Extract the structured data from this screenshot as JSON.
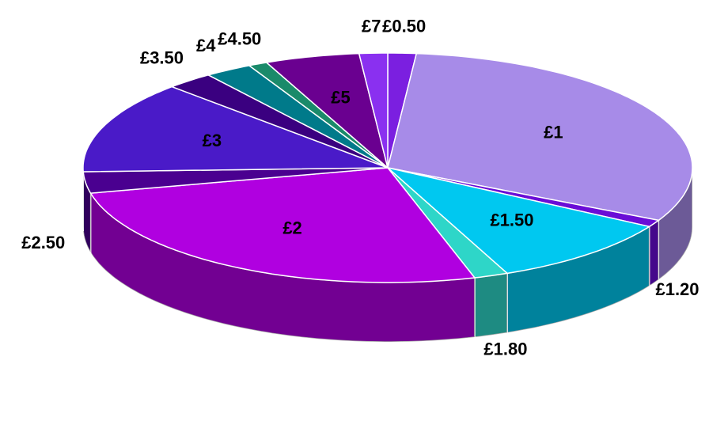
{
  "chart_data": {
    "type": "pie",
    "categories": [
      "£0.50",
      "£1",
      "£1.20",
      "£1.50",
      "£1.80",
      "£2",
      "£2.50",
      "£3",
      "£3.50",
      "£4",
      "£4.50",
      "£5",
      "£7"
    ],
    "values": [
      1.5,
      31,
      1,
      10,
      1.8,
      26,
      3,
      13,
      2.5,
      2.5,
      1,
      5,
      1.5
    ],
    "colors": [
      "#7b1fe0",
      "#a78be8",
      "#6a0dd6",
      "#00c8f0",
      "#2ed6c8",
      "#b000e0",
      "#4a0090",
      "#4a1ac8",
      "#3a0080",
      "#007a8a",
      "#1a8a6a",
      "#6a0090",
      "#8a30f0"
    ]
  }
}
